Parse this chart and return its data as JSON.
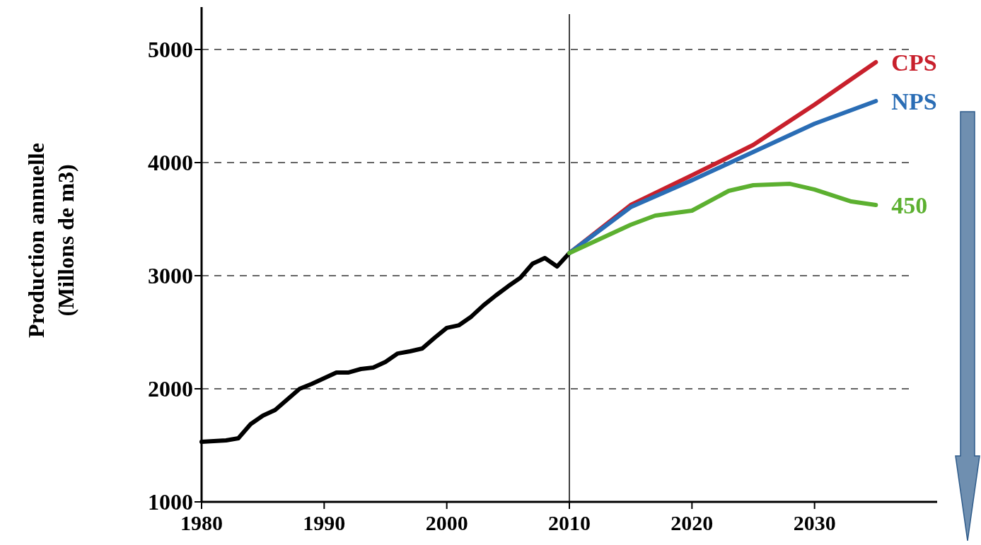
{
  "chart_data": {
    "type": "line",
    "ylabel": "Production annuelle\n(Millons de m3)",
    "xlim": [
      1980,
      2040
    ],
    "xticks": [
      1980,
      1990,
      2000,
      2010,
      2020,
      2030
    ],
    "ylim": [
      1000,
      5375
    ],
    "yticks": [
      1000,
      2000,
      3000,
      4000,
      5000
    ],
    "grid": "y",
    "line_style": "solid",
    "ref_lines": [
      {
        "axis": "x",
        "value": 2010,
        "label": null,
        "color": "#000000"
      }
    ],
    "series": [
      {
        "color": "#000000",
        "x": [
          1980,
          1982,
          1983,
          1984,
          1985,
          1986,
          1987,
          1988,
          1989,
          1990,
          1991,
          1992,
          1993,
          1994,
          1995,
          1996,
          1997,
          1998,
          1999,
          2000,
          2001,
          2002,
          2003,
          2004,
          2005,
          2006,
          2007,
          2008,
          2009,
          2010
        ],
        "values": [
          1531,
          1544,
          1562,
          1687,
          1762,
          1812,
          1906,
          2000,
          2044,
          2094,
          2144,
          2144,
          2175,
          2188,
          2238,
          2312,
          2331,
          2356,
          2450,
          2538,
          2562,
          2638,
          2738,
          2825,
          2906,
          2981,
          3106,
          3156,
          3081,
          3200
        ]
      },
      {
        "name": "CPS",
        "color": "#c8202c",
        "x": [
          2010,
          2015,
          2020,
          2025,
          2030,
          2035
        ],
        "values": [
          3200,
          3625,
          3888,
          4156,
          4512,
          4888
        ]
      },
      {
        "name": "NPS",
        "color": "#2a6db5",
        "x": [
          2010,
          2015,
          2020,
          2025,
          2030,
          2035
        ],
        "values": [
          3200,
          3606,
          3844,
          4094,
          4344,
          4544
        ]
      },
      {
        "name": "450",
        "color": "#5cb030",
        "x": [
          2010,
          2015,
          2017,
          2020,
          2023,
          2025,
          2028,
          2030,
          2033,
          2035
        ],
        "values": [
          3200,
          3450,
          3531,
          3575,
          3750,
          3800,
          3812,
          3762,
          3656,
          3625
        ]
      }
    ]
  }
}
